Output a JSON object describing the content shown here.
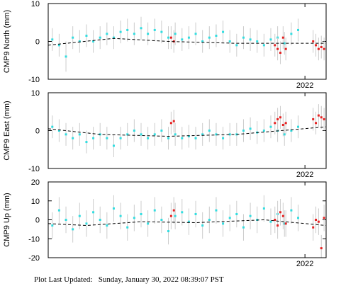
{
  "chart_data": [
    {
      "type": "scatter",
      "ylabel": "CMP9 North (mm)",
      "xlim": [
        2020.12,
        2022.155
      ],
      "ylim": [
        -10,
        10
      ],
      "yticks": [
        -10,
        0,
        10
      ],
      "xticks": [
        2022
      ],
      "series": [
        {
          "color": "#33dde0",
          "x": [
            2020.15,
            2020.2,
            2020.25,
            2020.3,
            2020.35,
            2020.4,
            2020.45,
            2020.5,
            2020.55,
            2020.6,
            2020.65,
            2020.7,
            2020.75,
            2020.8,
            2020.85,
            2020.9,
            2020.95,
            2021.0,
            2021.05,
            2021.1,
            2021.15,
            2021.2,
            2021.25,
            2021.3,
            2021.35,
            2021.4,
            2021.45,
            2021.5,
            2021.55,
            2021.6,
            2021.65,
            2021.7,
            2021.75,
            2021.8,
            2021.85,
            2021.9,
            2021.95
          ],
          "values": [
            0.5,
            -1,
            -4,
            1,
            0,
            1.5,
            0,
            1,
            2,
            1,
            2.5,
            3,
            2,
            3.5,
            2,
            3,
            2.5,
            1,
            2,
            0.5,
            1,
            2,
            0,
            1,
            1.5,
            2.5,
            0,
            -1,
            1,
            0.5,
            0,
            -1,
            0.5,
            1,
            -0.5,
            2,
            3
          ],
          "errors": [
            3,
            3,
            4,
            3,
            3,
            3,
            3,
            3,
            3,
            3,
            3,
            3,
            3,
            3,
            3,
            3,
            3,
            3,
            3,
            3,
            3,
            3,
            3,
            3,
            3,
            3,
            3,
            3,
            3,
            3,
            3,
            3,
            3,
            3,
            3,
            3,
            3
          ]
        },
        {
          "color": "#e62222",
          "x": [
            2021.02,
            2021.04,
            2021.78,
            2021.8,
            2021.82,
            2021.84,
            2021.86,
            2022.06,
            2022.08,
            2022.1,
            2022.12,
            2022.14
          ],
          "values": [
            1,
            0,
            -1,
            -2,
            -3,
            1,
            -2,
            0,
            -1,
            -2,
            -1.5,
            -2
          ],
          "errors": [
            3,
            3,
            3,
            3,
            3,
            3,
            3,
            3,
            3,
            3,
            3,
            3
          ]
        },
        {
          "color": "#000000",
          "style": "dashed",
          "x": [
            2020.12,
            2020.6,
            2021.0,
            2021.5,
            2022.155
          ],
          "values": [
            -1,
            0.8,
            0,
            -0.5,
            -0.5
          ]
        }
      ]
    },
    {
      "type": "scatter",
      "ylabel": "CMP9 East (mm)",
      "xlim": [
        2020.12,
        2022.155
      ],
      "ylim": [
        -10,
        10
      ],
      "yticks": [
        -10,
        0,
        10
      ],
      "xticks": [
        2022
      ],
      "series": [
        {
          "color": "#33dde0",
          "x": [
            2020.15,
            2020.2,
            2020.25,
            2020.3,
            2020.35,
            2020.4,
            2020.45,
            2020.5,
            2020.55,
            2020.6,
            2020.65,
            2020.7,
            2020.75,
            2020.8,
            2020.85,
            2020.9,
            2020.95,
            2021.0,
            2021.05,
            2021.1,
            2021.15,
            2021.2,
            2021.25,
            2021.3,
            2021.35,
            2021.4,
            2021.45,
            2021.5,
            2021.55,
            2021.6,
            2021.65,
            2021.7,
            2021.75,
            2021.8,
            2021.85,
            2021.9,
            2021.95
          ],
          "values": [
            1,
            0,
            -1,
            -2,
            -1,
            -3,
            -2,
            -1,
            -2,
            -4,
            -2,
            -1,
            0,
            -1,
            -2,
            -1,
            0,
            -2,
            -1,
            -2,
            -1.5,
            -2,
            -1,
            0,
            -1,
            -2,
            -1,
            -1,
            0,
            0.5,
            -0.5,
            0,
            1,
            0,
            -1,
            0,
            1
          ],
          "errors": [
            3,
            3,
            3,
            3,
            3,
            3,
            3,
            3,
            3,
            3,
            3,
            3,
            3,
            3,
            3,
            3,
            3,
            3,
            3,
            3,
            3,
            3,
            3,
            3,
            3,
            3,
            3,
            3,
            3,
            3,
            3,
            3,
            3,
            3,
            3,
            3,
            3
          ]
        },
        {
          "color": "#e62222",
          "x": [
            2021.02,
            2021.04,
            2021.78,
            2021.8,
            2021.82,
            2021.84,
            2021.86,
            2022.06,
            2022.08,
            2022.1,
            2022.12,
            2022.14
          ],
          "values": [
            2,
            2.5,
            2,
            3,
            3.5,
            1.5,
            2,
            3,
            2,
            4,
            3.5,
            3
          ],
          "errors": [
            3,
            3,
            3,
            3,
            3,
            3,
            3,
            3,
            3,
            3,
            3,
            3
          ]
        },
        {
          "color": "#000000",
          "style": "dashed",
          "x": [
            2020.12,
            2020.5,
            2021.0,
            2021.5,
            2022.155
          ],
          "values": [
            0.5,
            -1,
            -1.5,
            -1,
            1
          ]
        }
      ]
    },
    {
      "type": "scatter",
      "ylabel": "CMP9 Up (mm)",
      "xlim": [
        2020.12,
        2022.155
      ],
      "ylim": [
        -20,
        20
      ],
      "yticks": [
        -20,
        -10,
        0,
        10,
        20
      ],
      "xticks": [
        2022
      ],
      "series": [
        {
          "color": "#33dde0",
          "x": [
            2020.15,
            2020.2,
            2020.25,
            2020.3,
            2020.35,
            2020.4,
            2020.45,
            2020.5,
            2020.55,
            2020.6,
            2020.65,
            2020.7,
            2020.75,
            2020.8,
            2020.85,
            2020.9,
            2020.95,
            2021.0,
            2021.05,
            2021.1,
            2021.15,
            2021.2,
            2021.25,
            2021.3,
            2021.35,
            2021.4,
            2021.45,
            2021.5,
            2021.55,
            2021.6,
            2021.65,
            2021.7,
            2021.75,
            2021.8,
            2021.85,
            2021.9,
            2021.95
          ],
          "values": [
            -3,
            5,
            0,
            -5,
            2,
            -2,
            4,
            0,
            -3,
            6,
            2,
            -4,
            1,
            3,
            -2,
            5,
            0,
            -6,
            2,
            4,
            -1,
            3,
            -3,
            0,
            5,
            -2,
            1,
            3,
            -4,
            2,
            0,
            6,
            -1,
            3,
            -2,
            5,
            1
          ],
          "errors": [
            7,
            7,
            7,
            7,
            7,
            7,
            7,
            7,
            7,
            7,
            7,
            7,
            7,
            7,
            7,
            7,
            7,
            7,
            7,
            7,
            7,
            7,
            7,
            7,
            7,
            7,
            7,
            7,
            7,
            7,
            7,
            7,
            7,
            7,
            7,
            7,
            7
          ]
        },
        {
          "color": "#e62222",
          "x": [
            2021.02,
            2021.04,
            2021.78,
            2021.8,
            2021.82,
            2021.84,
            2021.86,
            2022.06,
            2022.08,
            2022.1,
            2022.12,
            2022.14
          ],
          "values": [
            2,
            5,
            0,
            -3,
            4,
            2,
            -2,
            -4,
            0,
            -1,
            -15,
            1
          ],
          "errors": [
            7,
            7,
            7,
            7,
            7,
            7,
            7,
            7,
            7,
            7,
            7,
            7
          ]
        },
        {
          "color": "#000000",
          "style": "dashed",
          "x": [
            2020.12,
            2020.4,
            2020.8,
            2021.2,
            2021.7,
            2022.155
          ],
          "values": [
            -2,
            -3,
            -1,
            -1.5,
            0,
            -3
          ]
        }
      ]
    }
  ],
  "footer": "Plot Last Updated:   Sunday, January 30, 2022 08:39:07 PST"
}
